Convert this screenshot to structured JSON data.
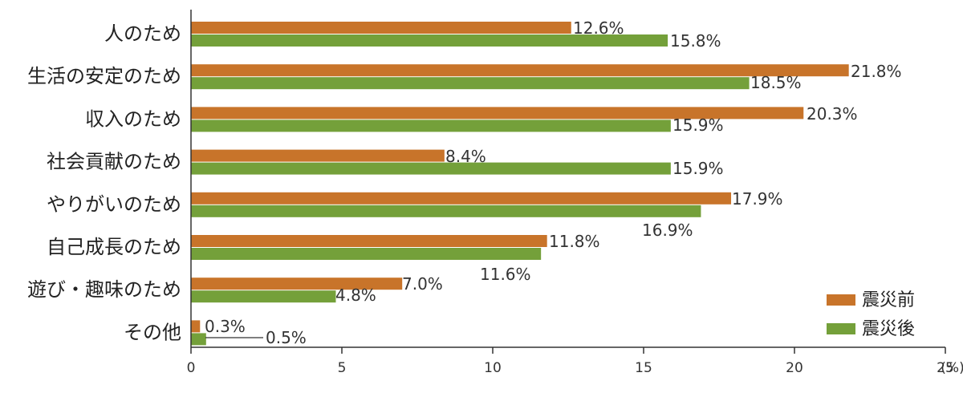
{
  "chart_data": {
    "type": "bar",
    "orientation": "horizontal",
    "categories": [
      "人のため",
      "生活の安定のため",
      "収入のため",
      "社会貢献のため",
      "やりがいのため",
      "自己成長のため",
      "遊び・趣味のため",
      "その他"
    ],
    "series": [
      {
        "name": "震災前",
        "color": "#c8742a",
        "values": [
          12.6,
          21.8,
          20.3,
          8.4,
          17.9,
          11.8,
          7.0,
          0.3
        ],
        "labels": [
          "12.6%",
          "21.8%",
          "20.3%",
          "8.4%",
          "17.9%",
          "11.8%",
          "7.0%",
          "0.3%"
        ]
      },
      {
        "name": "震災後",
        "color": "#74a03a",
        "values": [
          15.8,
          18.5,
          15.9,
          15.9,
          16.9,
          11.6,
          4.8,
          0.5
        ],
        "labels": [
          "15.8%",
          "18.5%",
          "15.9%",
          "15.9%",
          "16.9%",
          "11.6%",
          "4.8%",
          "0.5%"
        ]
      }
    ],
    "x_ticks": [
      "0",
      "5",
      "10",
      "15",
      "20",
      "25"
    ],
    "x_unit": "(%)",
    "xlim": [
      0,
      25
    ],
    "grid": false,
    "legend_position": "bottom-right"
  }
}
